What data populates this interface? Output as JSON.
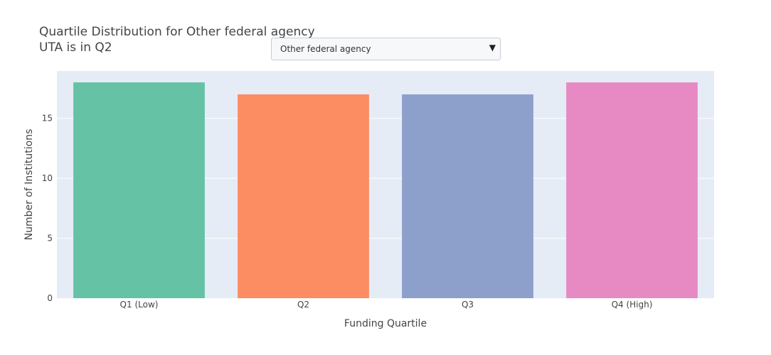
{
  "header": {
    "title_line1": "Quartile Distribution for Other federal agency",
    "title_line2": "UTA is in Q2"
  },
  "dropdown": {
    "selected": "Other federal agency",
    "arrow": "▼"
  },
  "chart_data": {
    "type": "bar",
    "categories": [
      "Q1 (Low)",
      "Q2",
      "Q3",
      "Q4 (High)"
    ],
    "values": [
      18,
      17,
      17,
      18
    ],
    "colors": [
      "#66c2a5",
      "#fc8d62",
      "#8da0cb",
      "#e78ac3"
    ],
    "title": "Quartile Distribution for Other federal agency",
    "xlabel": "Funding Quartile",
    "ylabel": "Number of Institutions",
    "ylim": [
      0,
      18.95
    ],
    "yticks": [
      0,
      5,
      10,
      15
    ],
    "grid": true,
    "plot_background": "#e5ecf6"
  }
}
